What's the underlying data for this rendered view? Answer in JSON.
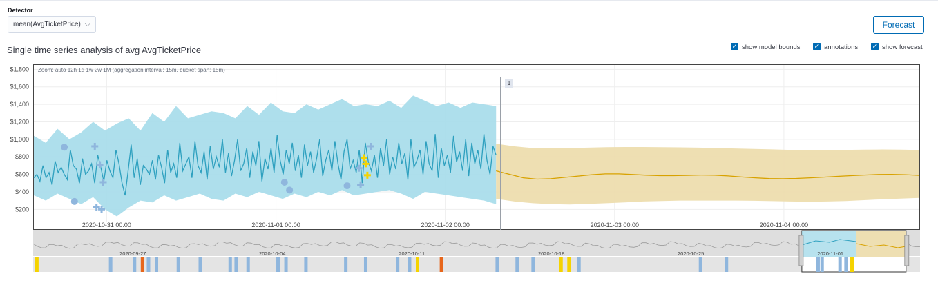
{
  "detector": {
    "label": "Detector",
    "value": "mean(AvgTicketPrice)"
  },
  "forecast_button": "Forecast",
  "title": "Single time series analysis of avg AvgTicketPrice",
  "checkboxes": [
    {
      "label": "show model bounds",
      "checked": true
    },
    {
      "label": "annotations",
      "checked": true
    },
    {
      "label": "show forecast",
      "checked": true
    }
  ],
  "zoom_bar": "Zoom: auto 12h 1d 1w 2w 1M   (aggregation interval: 15m, bucket span: 15m)",
  "annotation_marker": "1",
  "colors": {
    "accent": "#006bb4",
    "model_bounds": "#a5dbea",
    "actual_line": "#2ea0bf",
    "forecast_line": "#d8a200",
    "forecast_bounds": "#ecdcaa",
    "anomaly_minor": "#8fb6dd",
    "anomaly_warning": "#f5d300",
    "anomaly_critical": "#e7661b"
  },
  "chart_data": {
    "type": "line",
    "y_tick_labels": [
      "$200",
      "$400",
      "$600",
      "$800",
      "$1,000",
      "$1,200",
      "$1,400",
      "$1,600",
      "$1,800"
    ],
    "ylim": [
      100,
      1850
    ],
    "x_tick_labels": [
      "2020-10-31 00:00",
      "2020-11-01 00:00",
      "2020-11-02 00:00",
      "2020-11-03 00:00",
      "2020-11-04 00:00"
    ],
    "x_tick_days": [
      0,
      1,
      2,
      3,
      4
    ],
    "xlim_days": [
      -0.43,
      4.8
    ],
    "forecast_start_day": 2.3,
    "series": [
      {
        "values": [
          560,
          600,
          520,
          700,
          560,
          620,
          480,
          750,
          620,
          680,
          600,
          540,
          880,
          700,
          660,
          500,
          780,
          600,
          640,
          720,
          500,
          820,
          680,
          520,
          760,
          640,
          560,
          880,
          720,
          500,
          360,
          640,
          940,
          560,
          780,
          480,
          700,
          660,
          600,
          760,
          540,
          820,
          680,
          500,
          880,
          620,
          720,
          560,
          960,
          640,
          720,
          800,
          560,
          980,
          700,
          620,
          860,
          540,
          920,
          660,
          800,
          680,
          1000,
          620,
          840,
          580,
          760,
          1000,
          640,
          720,
          900,
          560,
          860,
          700,
          980,
          520,
          780,
          660,
          900,
          620,
          1050,
          760,
          600,
          880,
          720,
          960,
          640,
          820,
          560,
          940,
          700,
          860,
          620,
          780,
          1000,
          580,
          760,
          880,
          640,
          980,
          720,
          540,
          860,
          1000,
          660,
          760,
          620,
          880,
          500,
          960,
          740,
          640,
          820,
          560,
          900,
          700,
          1000,
          600,
          800,
          660,
          960,
          720,
          840,
          540,
          1000,
          680,
          760,
          880,
          600,
          980,
          720,
          640,
          1060,
          560,
          900,
          700,
          820,
          620,
          1040,
          740,
          860,
          640,
          1000,
          580,
          960,
          720,
          880,
          660,
          1060,
          760,
          600,
          920,
          820
        ]
      },
      {
        "values": [
          640,
          600,
          560,
          545,
          550,
          565,
          580,
          595,
          605,
          605,
          598,
          590,
          585,
          585,
          588,
          592,
          590,
          582,
          570,
          560,
          552,
          550,
          553,
          560,
          568,
          577,
          585,
          592,
          598,
          600,
          596,
          588
        ]
      }
    ],
    "model_bounds": {
      "upper": [
        1040,
        960,
        1120,
        1000,
        1080,
        1200,
        1100,
        1180,
        1240,
        1100,
        1300,
        1200,
        1380,
        1240,
        1280,
        1320,
        1300,
        1240,
        1380,
        1280,
        1420,
        1320,
        1300,
        1400,
        1340,
        1400,
        1460,
        1380,
        1400,
        1380,
        1440,
        1360,
        1500,
        1440,
        1380,
        1420,
        1360,
        1420,
        1400,
        1380
      ],
      "lower": [
        360,
        300,
        380,
        320,
        260,
        340,
        200,
        120,
        220,
        300,
        280,
        360,
        300,
        340,
        380,
        320,
        300,
        380,
        340,
        400,
        360,
        320,
        380,
        340,
        400,
        360,
        420,
        360,
        380,
        400,
        420,
        380,
        320,
        400,
        380,
        360,
        340,
        320,
        300,
        260
      ]
    },
    "forecast_bounds": {
      "upper": [
        950,
        920,
        900,
        900,
        900,
        905,
        910,
        912,
        912,
        910,
        908,
        905,
        900,
        895,
        890,
        885,
        880,
        878,
        878,
        880,
        882,
        884,
        882,
        878
      ],
      "lower": [
        320,
        290,
        270,
        260,
        255,
        262,
        270,
        280,
        290,
        295,
        300,
        300,
        300,
        300,
        298,
        294,
        290,
        288,
        290,
        295,
        305,
        315,
        322,
        330
      ]
    },
    "anomalies": [
      {
        "day": -0.25,
        "value": 910,
        "shape": "circle",
        "severity": "minor"
      },
      {
        "day": -0.19,
        "value": 290,
        "shape": "circle",
        "severity": "minor"
      },
      {
        "day": -0.07,
        "value": 920,
        "shape": "cross",
        "severity": "minor"
      },
      {
        "day": -0.06,
        "value": 225,
        "shape": "cross",
        "severity": "minor"
      },
      {
        "day": -0.03,
        "value": 200,
        "shape": "cross",
        "severity": "minor"
      },
      {
        "day": -0.04,
        "value": 710,
        "shape": "cross",
        "severity": "minor"
      },
      {
        "day": -0.02,
        "value": 510,
        "shape": "cross",
        "severity": "minor"
      },
      {
        "day": 1.05,
        "value": 510,
        "shape": "circle",
        "severity": "minor"
      },
      {
        "day": 1.08,
        "value": 420,
        "shape": "circle",
        "severity": "minor"
      },
      {
        "day": 1.42,
        "value": 470,
        "shape": "circle",
        "severity": "minor"
      },
      {
        "day": 1.49,
        "value": 670,
        "shape": "cross",
        "severity": "minor"
      },
      {
        "day": 1.5,
        "value": 480,
        "shape": "cross",
        "severity": "minor"
      },
      {
        "day": 1.52,
        "value": 790,
        "shape": "cross",
        "severity": "warning"
      },
      {
        "day": 1.53,
        "value": 720,
        "shape": "cross",
        "severity": "warning"
      },
      {
        "day": 1.54,
        "value": 590,
        "shape": "cross",
        "severity": "warning"
      },
      {
        "day": 1.56,
        "value": 920,
        "shape": "cross",
        "severity": "minor"
      }
    ]
  },
  "context_chart": {
    "x_tick_labels": [
      "2020-09-27",
      "2020-10-04",
      "2020-10-11",
      "2020-10-18",
      "2020-10-25",
      "2020-11-01"
    ],
    "x_tick_days": [
      -34,
      -27,
      -20,
      -13,
      -6,
      1
    ],
    "xlim_days": [
      -39,
      5.5
    ],
    "selection_days": [
      -0.43,
      4.8
    ],
    "swimlane": [
      {
        "day": -38.9,
        "severity": "warning"
      },
      {
        "day": -35.2,
        "severity": "minor"
      },
      {
        "day": -34.0,
        "severity": "minor"
      },
      {
        "day": -33.6,
        "severity": "critical"
      },
      {
        "day": -33.3,
        "severity": "minor"
      },
      {
        "day": -32.9,
        "severity": "minor"
      },
      {
        "day": -31.8,
        "severity": "minor"
      },
      {
        "day": -30.7,
        "severity": "minor"
      },
      {
        "day": -29.2,
        "severity": "minor"
      },
      {
        "day": -28.9,
        "severity": "minor"
      },
      {
        "day": -28.3,
        "severity": "minor"
      },
      {
        "day": -26.8,
        "severity": "minor"
      },
      {
        "day": -26.4,
        "severity": "minor"
      },
      {
        "day": -25.4,
        "severity": "minor"
      },
      {
        "day": -23.4,
        "severity": "minor"
      },
      {
        "day": -22.4,
        "severity": "minor"
      },
      {
        "day": -20.8,
        "severity": "minor"
      },
      {
        "day": -20.2,
        "severity": "minor"
      },
      {
        "day": -19.8,
        "severity": "warning"
      },
      {
        "day": -18.6,
        "severity": "critical"
      },
      {
        "day": -15.8,
        "severity": "minor"
      },
      {
        "day": -14.8,
        "severity": "minor"
      },
      {
        "day": -14.0,
        "severity": "minor"
      },
      {
        "day": -12.6,
        "severity": "warning"
      },
      {
        "day": -12.2,
        "severity": "warning"
      },
      {
        "day": -11.7,
        "severity": "minor"
      },
      {
        "day": -5.6,
        "severity": "minor"
      },
      {
        "day": -4.3,
        "severity": "minor"
      },
      {
        "day": 0.3,
        "severity": "minor"
      },
      {
        "day": 0.5,
        "severity": "minor"
      },
      {
        "day": 1.4,
        "severity": "minor"
      },
      {
        "day": 1.7,
        "severity": "minor"
      },
      {
        "day": 2.0,
        "severity": "warning"
      }
    ]
  }
}
